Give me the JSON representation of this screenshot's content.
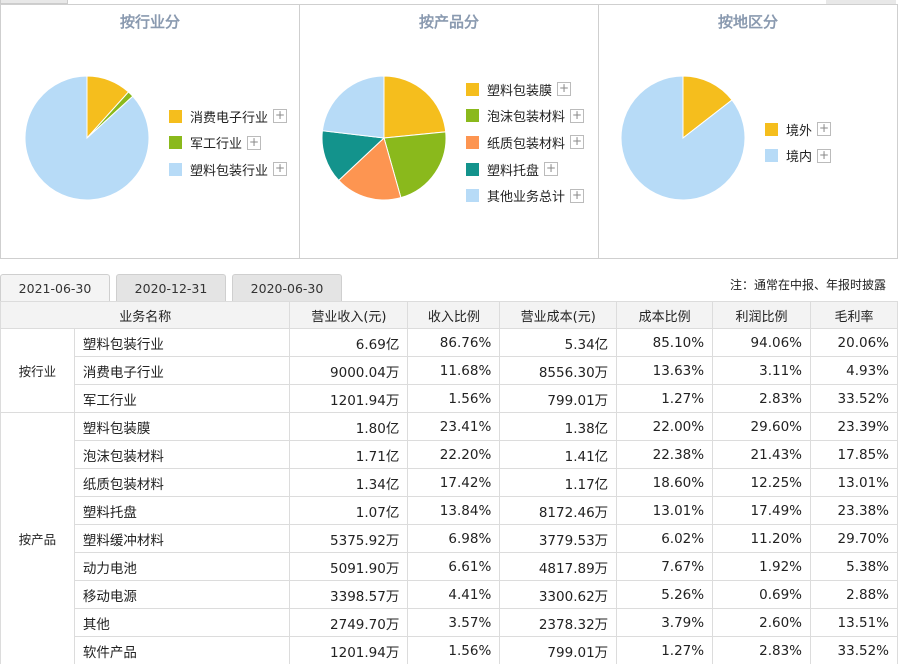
{
  "panels": [
    {
      "title": "按行业分",
      "slices": [
        {
          "label": "消费电子行业",
          "value": 11.68,
          "color": "#f5be1d"
        },
        {
          "label": "军工行业",
          "value": 1.56,
          "color": "#8ab91c"
        },
        {
          "label": "塑料包装行业",
          "value": 86.76,
          "color": "#b7dbf7"
        }
      ]
    },
    {
      "title": "按产品分",
      "slices": [
        {
          "label": "塑料包装膜",
          "value": 23.41,
          "color": "#f5be1d"
        },
        {
          "label": "泡沫包装材料",
          "value": 22.2,
          "color": "#8ab91c"
        },
        {
          "label": "纸质包装材料",
          "value": 17.42,
          "color": "#fd9551"
        },
        {
          "label": "塑料托盘",
          "value": 13.84,
          "color": "#13938c"
        },
        {
          "label": "其他业务总计",
          "value": 23.13,
          "color": "#b7dbf7"
        }
      ]
    },
    {
      "title": "按地区分",
      "slices": [
        {
          "label": "境外",
          "value": 14.5,
          "color": "#f5be1d"
        },
        {
          "label": "境内",
          "value": 85.5,
          "color": "#b7dbf7"
        }
      ]
    }
  ],
  "plus_symbol": "+",
  "tabs": [
    "2021-06-30",
    "2020-12-31",
    "2020-06-30"
  ],
  "note": "注：通常在中报、年报时披露",
  "table": {
    "headers": [
      "业务名称",
      "营业收入(元)",
      "收入比例",
      "营业成本(元)",
      "成本比例",
      "利润比例",
      "毛利率"
    ],
    "groups": [
      {
        "name": "按行业",
        "rows": [
          [
            "塑料包装行业",
            "6.69亿",
            "86.76%",
            "5.34亿",
            "85.10%",
            "94.06%",
            "20.06%"
          ],
          [
            "消费电子行业",
            "9000.04万",
            "11.68%",
            "8556.30万",
            "13.63%",
            "3.11%",
            "4.93%"
          ],
          [
            "军工行业",
            "1201.94万",
            "1.56%",
            "799.01万",
            "1.27%",
            "2.83%",
            "33.52%"
          ]
        ]
      },
      {
        "name": "按产品",
        "rows": [
          [
            "塑料包装膜",
            "1.80亿",
            "23.41%",
            "1.38亿",
            "22.00%",
            "29.60%",
            "23.39%"
          ],
          [
            "泡沫包装材料",
            "1.71亿",
            "22.20%",
            "1.41亿",
            "22.38%",
            "21.43%",
            "17.85%"
          ],
          [
            "纸质包装材料",
            "1.34亿",
            "17.42%",
            "1.17亿",
            "18.60%",
            "12.25%",
            "13.01%"
          ],
          [
            "塑料托盘",
            "1.07亿",
            "13.84%",
            "8172.46万",
            "13.01%",
            "17.49%",
            "23.38%"
          ],
          [
            "塑料缓冲材料",
            "5375.92万",
            "6.98%",
            "3779.53万",
            "6.02%",
            "11.20%",
            "29.70%"
          ],
          [
            "动力电池",
            "5091.90万",
            "6.61%",
            "4817.89万",
            "7.67%",
            "1.92%",
            "5.38%"
          ],
          [
            "移动电源",
            "3398.57万",
            "4.41%",
            "3300.62万",
            "5.26%",
            "0.69%",
            "2.88%"
          ],
          [
            "其他",
            "2749.70万",
            "3.57%",
            "2378.32万",
            "3.79%",
            "2.60%",
            "13.51%"
          ],
          [
            "软件产品",
            "1201.94万",
            "1.56%",
            "799.01万",
            "1.27%",
            "2.83%",
            "33.52%"
          ]
        ]
      }
    ]
  }
}
